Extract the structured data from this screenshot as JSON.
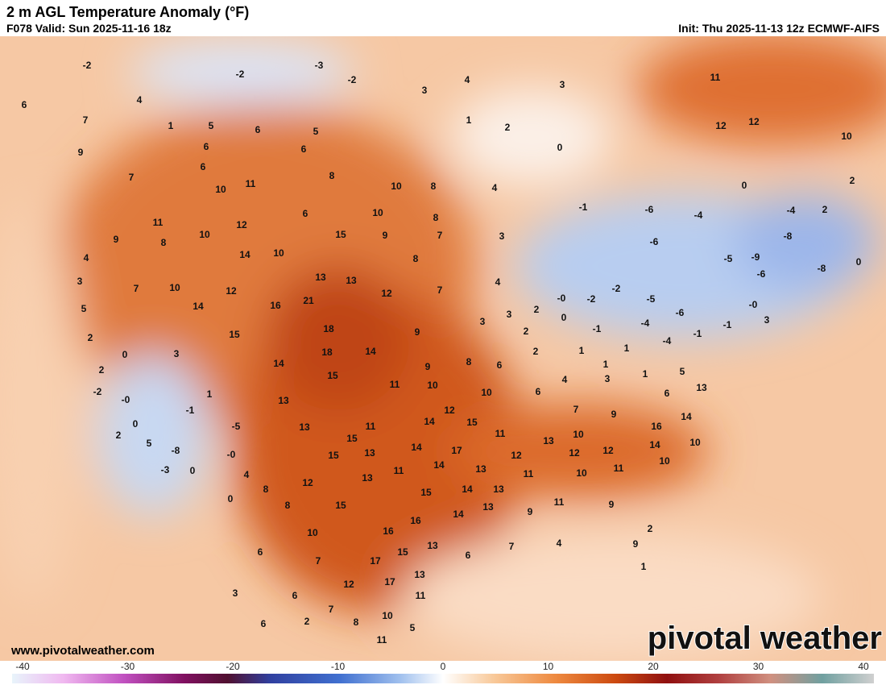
{
  "header": {
    "title": "2 m AGL Temperature Anomaly (°F)",
    "valid": "F078 Valid: Sun 2025-11-16 18z",
    "init": "Init: Thu 2025-11-13 12z ECMWF-AIFS"
  },
  "map": {
    "labels": [
      "-2",
      "-3",
      "-2",
      "-2",
      "4",
      "3",
      "6",
      "4",
      "3",
      "7",
      "1",
      "5",
      "6",
      "5",
      "1",
      "2",
      "11",
      "12",
      "12",
      "10",
      "9",
      "6",
      "6",
      "0",
      "7",
      "6",
      "8",
      "10",
      "11",
      "10",
      "8",
      "4",
      "0",
      "2",
      "11",
      "10",
      "12",
      "6",
      "10",
      "8",
      "-1",
      "-6",
      "-4",
      "-4",
      "2",
      "9",
      "8",
      "15",
      "9",
      "7",
      "3",
      "-6",
      "-8",
      "4",
      "14",
      "10",
      "8",
      "-5",
      "-9",
      "-8",
      "0",
      "3",
      "7",
      "10",
      "12",
      "13",
      "13",
      "12",
      "7",
      "4",
      "-6",
      "5",
      "14",
      "16",
      "21",
      "2",
      "-0",
      "-2",
      "-2",
      "-5",
      "-6",
      "-0",
      "2",
      "18",
      "9",
      "3",
      "3",
      "2",
      "0",
      "-1",
      "-4",
      "-4",
      "-1",
      "-1",
      "3",
      "0",
      "3",
      "15",
      "18",
      "14",
      "9",
      "8",
      "6",
      "2",
      "1",
      "1",
      "1",
      "14",
      "15",
      "11",
      "10",
      "10",
      "4",
      "3",
      "1",
      "5",
      "13",
      "2",
      "-2",
      "1",
      "13",
      "-0",
      "6",
      "7",
      "9",
      "6",
      "14",
      "0",
      "12",
      "14",
      "15",
      "-1",
      "13",
      "-5",
      "11",
      "11",
      "16",
      "2",
      "5",
      "-8",
      "15",
      "13",
      "10",
      "12",
      "14",
      "10",
      "-0",
      "15",
      "13",
      "14",
      "17",
      "12",
      "12",
      "-3",
      "0",
      "4",
      "11",
      "14",
      "13",
      "11",
      "10",
      "11",
      "10",
      "13",
      "12",
      "8",
      "0",
      "8",
      "15",
      "15",
      "14",
      "13",
      "9",
      "13",
      "9",
      "11",
      "14",
      "16",
      "10",
      "16",
      "2",
      "7",
      "4",
      "6",
      "15",
      "17",
      "13",
      "6",
      "7",
      "12",
      "17",
      "13",
      "11",
      "3",
      "6",
      "7",
      "10",
      "8",
      "2",
      "5",
      "11",
      "6",
      "1",
      "9"
    ]
  },
  "footer": {
    "website": "www.pivotalweather.com",
    "watermark": "pivotal weather"
  },
  "colorbar": {
    "ticks": [
      -40,
      -30,
      -20,
      -10,
      0,
      10,
      20,
      30,
      40
    ]
  }
}
